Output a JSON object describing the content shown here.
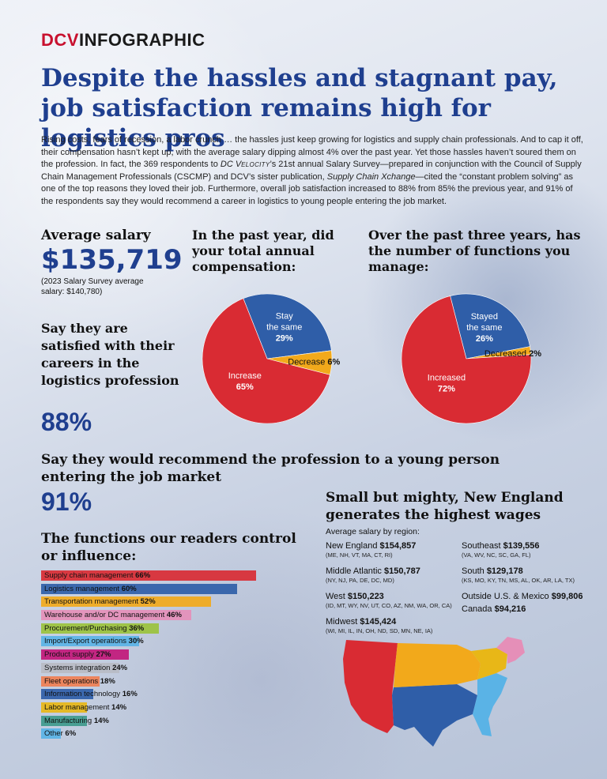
{
  "brand": {
    "part1": "DCV",
    "part2": "INFOGRAPHIC"
  },
  "headline": "Despite the hassles and stagnant pay, job satisfaction remains high for logistics pros",
  "intro": {
    "p1": "Rising costs, fears of recession, a labor crunch … the hassles just keep growing for logistics and supply chain professionals. And to cap it off, their compensation hasn’t kept up, with the average salary dipping almost 4% over the past year. Yet those hassles haven’t soured them on the profession. In fact, the 369 respondents to ",
    "pub1_a": "DC V",
    "pub1_b": "ELOCITY",
    "p2": "’s 21st annual Salary Survey—prepared in conjunction with the Council of Supply Chain Management Professionals (CSCMP) and DCV’s sister publication, ",
    "pub2": "Supply Chain Xchange",
    "p3": "—cited the “constant problem solving” as one of the top reasons they loved their job. Furthermore, overall job satisfaction increased to 88% from 85% the previous year, and 91% of the respondents say they would recommend a career in logistics to young people entering the job market."
  },
  "salary": {
    "title": "Average salary",
    "value": "$135,719",
    "note": "(2023 Salary Survey average salary: $140,780)"
  },
  "satisfied": {
    "title": "Say they are satisfied with their careers in the logistics profession",
    "value": "88%"
  },
  "recommend": {
    "title": "Say they would recommend the profession to a young person entering the job market",
    "value": "91%"
  },
  "functions_title": "The functions our readers control or influence:",
  "regions_title": "Small but mighty, New England generates the highest wages",
  "regions_sub": "Average salary by region:",
  "regions": [
    {
      "name": "New England",
      "value": "$154,857",
      "states": "(ME, NH, VT, MA, CT, RI)"
    },
    {
      "name": "Middle Atlantic",
      "value": "$150,787",
      "states": "(NY, NJ, PA, DE, DC, MD)"
    },
    {
      "name": "West",
      "value": "$150,223",
      "states": "(ID, MT, WY, NV, UT, CO, AZ, NM, WA, OR, CA)"
    },
    {
      "name": "Midwest",
      "value": "$145,424",
      "states": "(WI, MI, IL, IN, OH, ND, SD, MN, NE, IA)"
    },
    {
      "name": "Southeast",
      "value": "$139,556",
      "states": "(VA, WV, NC, SC, GA, FL)"
    },
    {
      "name": "South",
      "value": "$129,178",
      "states": "(KS, MO, KY, TN, MS, AL, OK, AR, LA, TX)"
    },
    {
      "name": "Outside U.S. & Mexico",
      "value": "$99,806",
      "states": ""
    },
    {
      "name": "Canada",
      "value": "$94,216",
      "states": ""
    }
  ],
  "colors": {
    "headline": "#1f3f8f",
    "red": "#d92b33",
    "blue": "#2f5ea8",
    "orange": "#f2a91b",
    "gold": "#e8b717"
  },
  "chart_data": [
    {
      "type": "pie",
      "title": "In the past year, did your total annual compensation:",
      "slices": [
        {
          "label": "Increase",
          "value": 65,
          "value_label": "65%",
          "color": "#d92b33"
        },
        {
          "label": "Stay the same",
          "value": 29,
          "value_label": "29%",
          "color": "#2f5ea8"
        },
        {
          "label": "Decrease",
          "value": 6,
          "value_label": "6%",
          "color": "#f2a91b"
        }
      ]
    },
    {
      "type": "pie",
      "title": "Over the past three years, has the number of functions you manage:",
      "slices": [
        {
          "label": "Increased",
          "value": 72,
          "value_label": "72%",
          "color": "#d92b33"
        },
        {
          "label": "Stayed the same",
          "value": 26,
          "value_label": "26%",
          "color": "#2f5ea8"
        },
        {
          "label": "Decreased",
          "value": 2,
          "value_label": "2%",
          "color": "#f2a91b"
        }
      ]
    },
    {
      "type": "bar",
      "orientation": "horizontal",
      "title": "The functions our readers control or influence:",
      "categories": [
        "Supply chain management",
        "Logistics management",
        "Transportation management",
        "Warehouse and/or DC management",
        "Procurement/Purchasing",
        "Import/Export operations",
        "Product supply",
        "Systems integration",
        "Fleet operations",
        "Information technology",
        "Labor management",
        "Manufacturing",
        "Other"
      ],
      "values": [
        66,
        60,
        52,
        46,
        36,
        30,
        27,
        24,
        18,
        16,
        14,
        14,
        6
      ],
      "value_labels": [
        "66%",
        "60%",
        "52%",
        "46%",
        "36%",
        "30%",
        "27%",
        "24%",
        "18%",
        "16%",
        "14%",
        "14%",
        "6%"
      ],
      "colors": [
        "#d92b33",
        "#2f5ea8",
        "#f2a91b",
        "#e58fb8",
        "#9bc23c",
        "#5ab3e6",
        "#c2187a",
        "#b8bcc4",
        "#ef7f52",
        "#2f5ea8",
        "#e8b717",
        "#3f9a8c",
        "#5ab3e6"
      ]
    }
  ]
}
